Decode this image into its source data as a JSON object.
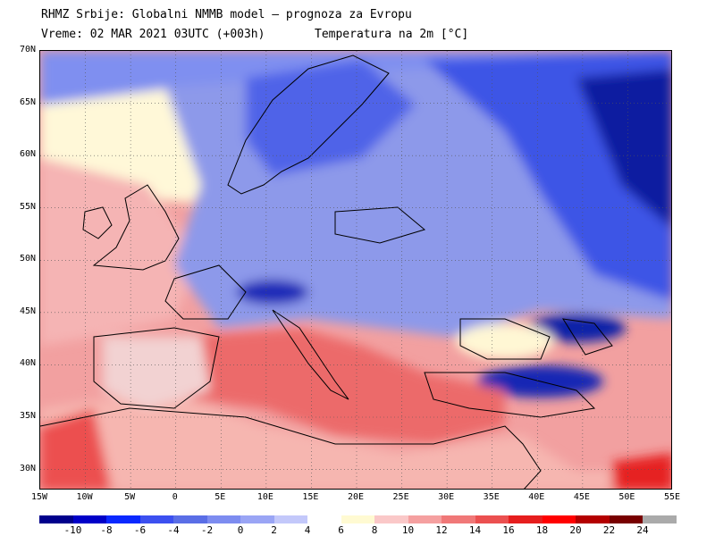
{
  "header": {
    "line1": "RHMZ Srbije: Globalni NMMB model — prognoza za Evropu",
    "line2_left": "Vreme: 02 MAR 2021 03UTC (+003h)",
    "line2_right": "Temperatura na 2m [°C]"
  },
  "axes": {
    "lat_labels": [
      "70N",
      "65N",
      "60N",
      "55N",
      "50N",
      "45N",
      "40N",
      "35N",
      "30N"
    ],
    "lon_labels": [
      "15W",
      "10W",
      "5W",
      "0",
      "5E",
      "10E",
      "15E",
      "20E",
      "25E",
      "30E",
      "35E",
      "40E",
      "45E",
      "50E",
      "55E"
    ],
    "lat_range": [
      28,
      70
    ],
    "lon_range": [
      -15,
      55
    ]
  },
  "legend": {
    "labels": [
      "-10",
      "-8",
      "-6",
      "-4",
      "-2",
      "0",
      "2",
      "4",
      "6",
      "8",
      "10",
      "12",
      "14",
      "16",
      "18",
      "20",
      "22",
      "24"
    ],
    "colors": [
      "#00008c",
      "#0000c8",
      "#0a28ff",
      "#3c50f0",
      "#5a6ee6",
      "#7d8cf0",
      "#9aa5f5",
      "#c3c8fa",
      "#ffffff",
      "#fffad2",
      "#fac8c8",
      "#f5a0a0",
      "#f07878",
      "#eb5050",
      "#e61e1e",
      "#ff0000",
      "#b40000",
      "#780000",
      "#aaaaaa"
    ]
  },
  "map": {
    "land_base_color": "#8c9ae8",
    "sea_cold_color": "#c8d0f5",
    "atlantic_warm_color": "#f5a8a8",
    "med_color": "#ee6464",
    "africa_color": "#f8c8c0"
  }
}
